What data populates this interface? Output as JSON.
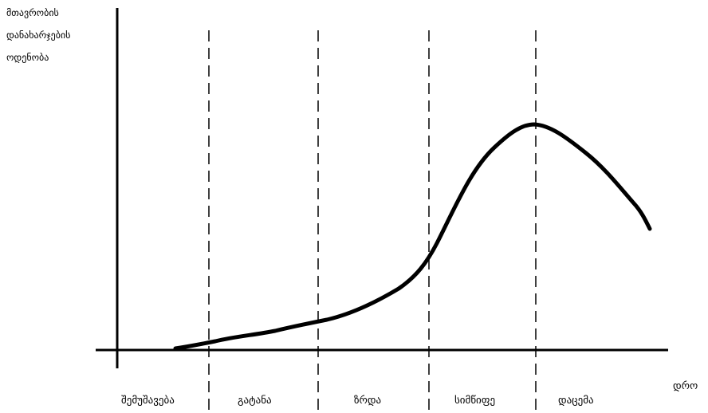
{
  "diagram": {
    "y_axis_label_lines": [
      "მთავრობის",
      "დანახარჯების",
      "ოდენობა"
    ],
    "x_axis_label": "დრო",
    "stages": [
      "შემუშავება",
      "გატანა",
      "ზრდა",
      "სიმწიფე",
      "დაცემა"
    ]
  },
  "chart_data": {
    "type": "line",
    "title": "",
    "xlabel": "დრო",
    "ylabel": "მთავრობის დანახარჯების ოდენობა",
    "series": [
      {
        "x": [
          0.0,
          0.5,
          1.0,
          1.5,
          2.0,
          2.5,
          3.0,
          3.3,
          3.6,
          3.9,
          4.0,
          4.3,
          4.6
        ],
        "values": [
          0.0,
          0.03,
          0.09,
          0.12,
          0.15,
          0.26,
          0.42,
          0.64,
          0.82,
          0.9,
          0.88,
          0.8,
          0.53
        ]
      }
    ],
    "stage_boundaries_x": [
      0.6,
      1.6,
      2.6,
      3.6
    ],
    "grid": false,
    "legend": "none"
  }
}
